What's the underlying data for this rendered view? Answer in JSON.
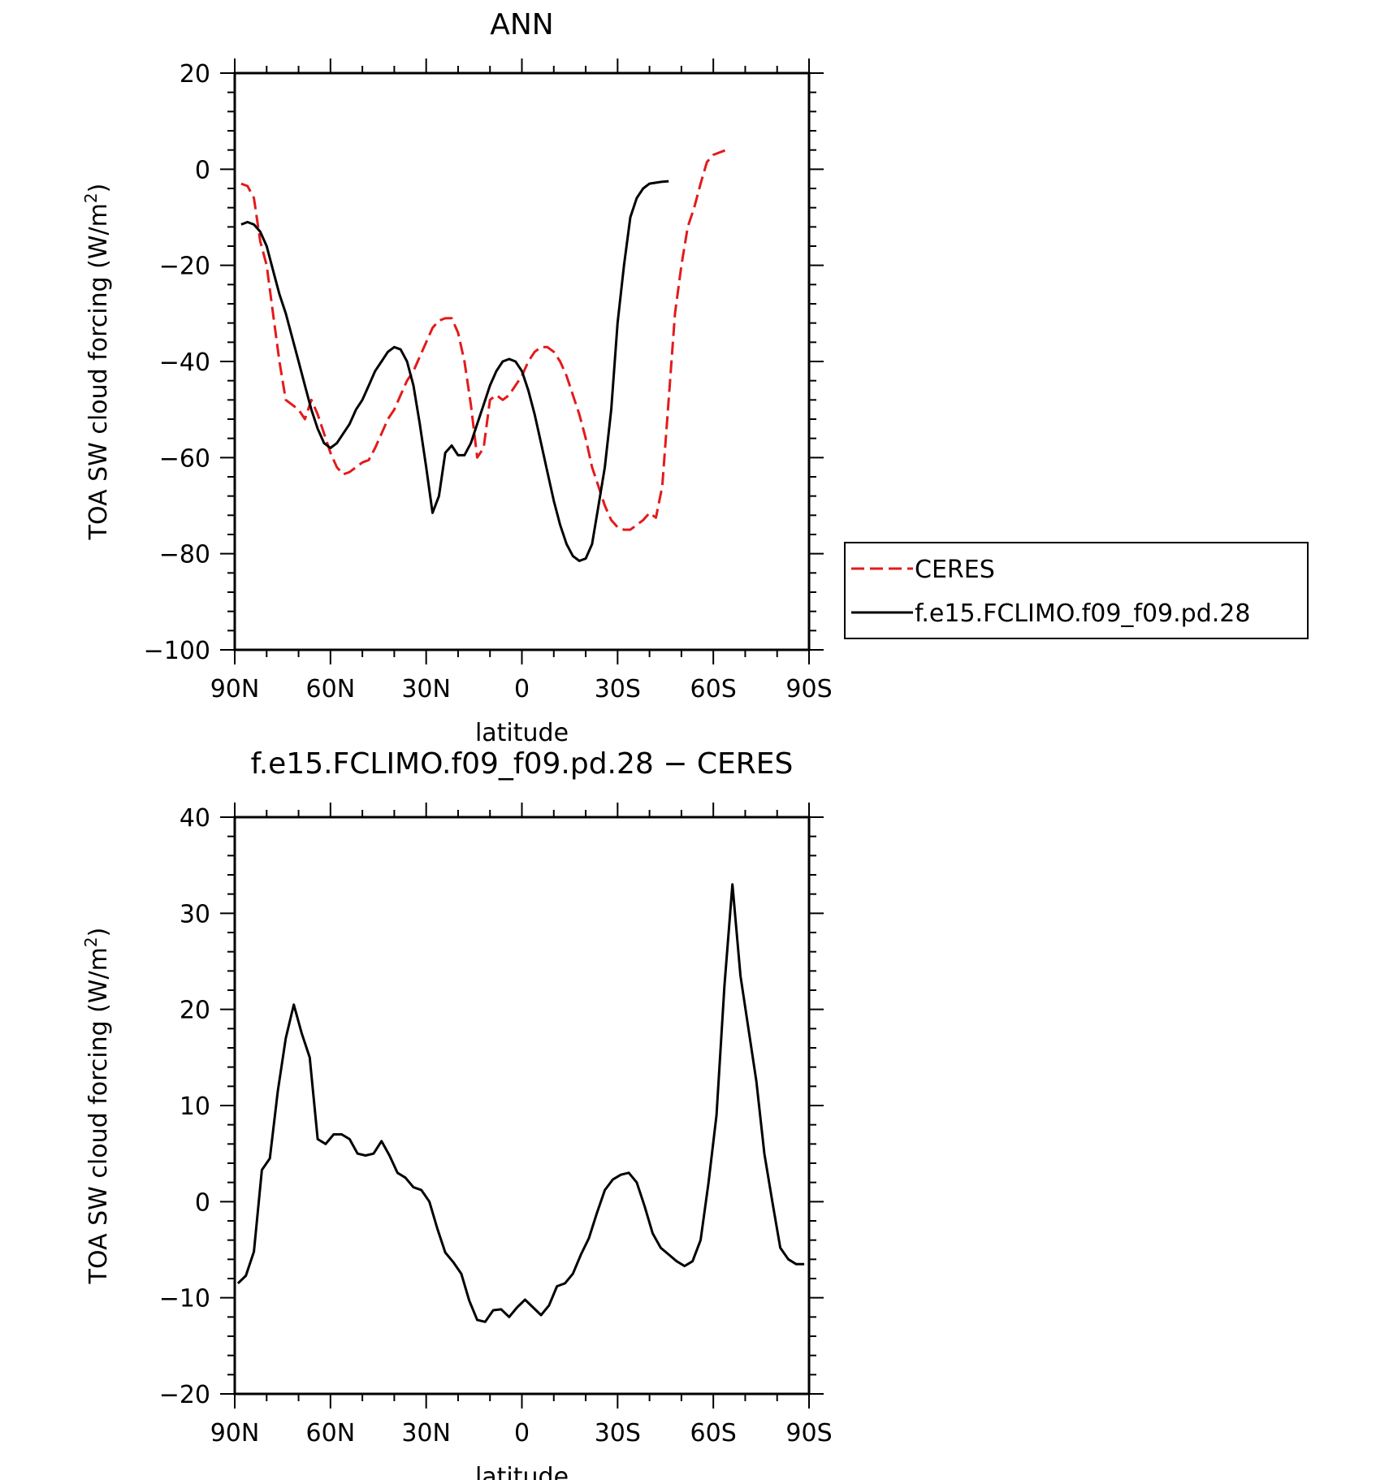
{
  "chart_data": [
    {
      "type": "line",
      "title": "ANN",
      "xlabel": "latitude",
      "ylabel": "TOA SW cloud forcing (W/m",
      "ylabel_sup": "2",
      "ylabel_close": ")",
      "xlim": [
        -90,
        90
      ],
      "ylim": [
        -100,
        20
      ],
      "xticks": [
        -90,
        -60,
        -30,
        0,
        30,
        60,
        90
      ],
      "xtick_labels": [
        "90N",
        "60N",
        "30N",
        "0",
        "30S",
        "60S",
        "90S"
      ],
      "yticks": [
        -100,
        -80,
        -60,
        -40,
        -20,
        0,
        20
      ],
      "ytick_labels": [
        "−100",
        "−80",
        "−60",
        "−40",
        "−20",
        "0",
        "20"
      ],
      "legend_position": "right",
      "series": [
        {
          "name": "CERES",
          "color": "#e31a1c",
          "dash": "dashed",
          "points": [
            [
              -88,
              -3
            ],
            [
              -86,
              -3.5
            ],
            [
              -84,
              -6
            ],
            [
              -82,
              -15
            ],
            [
              -80,
              -20
            ],
            [
              -78,
              -30
            ],
            [
              -76,
              -40
            ],
            [
              -74,
              -48
            ],
            [
              -72,
              -49
            ],
            [
              -70,
              -50
            ],
            [
              -68,
              -52
            ],
            [
              -66,
              -48
            ],
            [
              -64,
              -51
            ],
            [
              -62,
              -55
            ],
            [
              -60,
              -59
            ],
            [
              -58,
              -62
            ],
            [
              -56,
              -63.5
            ],
            [
              -54,
              -63
            ],
            [
              -52,
              -62
            ],
            [
              -50,
              -61
            ],
            [
              -48,
              -60.5
            ],
            [
              -46,
              -58
            ],
            [
              -44,
              -55
            ],
            [
              -42,
              -52
            ],
            [
              -40,
              -50
            ],
            [
              -38,
              -47
            ],
            [
              -36,
              -44
            ],
            [
              -34,
              -42
            ],
            [
              -32,
              -39
            ],
            [
              -30,
              -36
            ],
            [
              -28,
              -33
            ],
            [
              -26,
              -31.5
            ],
            [
              -24,
              -31
            ],
            [
              -22,
              -31
            ],
            [
              -20,
              -34
            ],
            [
              -18,
              -40
            ],
            [
              -16,
              -49
            ],
            [
              -14,
              -60
            ],
            [
              -12,
              -58
            ],
            [
              -10,
              -48
            ],
            [
              -8,
              -47
            ],
            [
              -6,
              -48
            ],
            [
              -4,
              -47
            ],
            [
              -2,
              -45
            ],
            [
              0,
              -43
            ],
            [
              2,
              -40
            ],
            [
              4,
              -38
            ],
            [
              6,
              -37
            ],
            [
              8,
              -37
            ],
            [
              10,
              -38
            ],
            [
              12,
              -40
            ],
            [
              14,
              -43
            ],
            [
              16,
              -47
            ],
            [
              18,
              -51
            ],
            [
              20,
              -56
            ],
            [
              22,
              -62
            ],
            [
              24,
              -66
            ],
            [
              26,
              -70
            ],
            [
              28,
              -73
            ],
            [
              30,
              -74.5
            ],
            [
              32,
              -75
            ],
            [
              34,
              -75
            ],
            [
              36,
              -74
            ],
            [
              38,
              -73
            ],
            [
              40,
              -71.5
            ],
            [
              42,
              -72.5
            ],
            [
              44,
              -66
            ],
            [
              46,
              -48
            ],
            [
              48,
              -30
            ],
            [
              50,
              -20
            ],
            [
              52,
              -12
            ],
            [
              54,
              -8
            ],
            [
              56,
              -3
            ],
            [
              58,
              1.5
            ],
            [
              60,
              3
            ],
            [
              62,
              3.5
            ],
            [
              64,
              4
            ]
          ]
        },
        {
          "name": "f.e15.FCLIMO.f09_f09.pd.28",
          "color": "#000000",
          "dash": "solid",
          "points": [
            [
              -88,
              -11.5
            ],
            [
              -86,
              -11
            ],
            [
              -84,
              -11.5
            ],
            [
              -82,
              -13
            ],
            [
              -80,
              -16
            ],
            [
              -78,
              -21
            ],
            [
              -76,
              -26
            ],
            [
              -74,
              -30
            ],
            [
              -72,
              -35
            ],
            [
              -70,
              -40
            ],
            [
              -68,
              -45
            ],
            [
              -66,
              -50
            ],
            [
              -64,
              -54
            ],
            [
              -62,
              -57
            ],
            [
              -60,
              -58
            ],
            [
              -58,
              -57
            ],
            [
              -56,
              -55
            ],
            [
              -54,
              -53
            ],
            [
              -52,
              -50
            ],
            [
              -50,
              -48
            ],
            [
              -48,
              -45
            ],
            [
              -46,
              -42
            ],
            [
              -44,
              -40
            ],
            [
              -42,
              -38
            ],
            [
              -40,
              -37
            ],
            [
              -38,
              -37.5
            ],
            [
              -36,
              -40
            ],
            [
              -34,
              -45
            ],
            [
              -32,
              -53
            ],
            [
              -30,
              -62
            ],
            [
              -28,
              -71.5
            ],
            [
              -26,
              -68
            ],
            [
              -24,
              -59
            ],
            [
              -22,
              -57.5
            ],
            [
              -20,
              -59.5
            ],
            [
              -18,
              -59.5
            ],
            [
              -16,
              -57
            ],
            [
              -14,
              -53
            ],
            [
              -12,
              -49
            ],
            [
              -10,
              -45
            ],
            [
              -8,
              -42
            ],
            [
              -6,
              -40
            ],
            [
              -4,
              -39.5
            ],
            [
              -2,
              -40
            ],
            [
              0,
              -42
            ],
            [
              2,
              -46
            ],
            [
              4,
              -51
            ],
            [
              6,
              -57
            ],
            [
              8,
              -63
            ],
            [
              10,
              -69
            ],
            [
              12,
              -74
            ],
            [
              14,
              -78
            ],
            [
              16,
              -80.5
            ],
            [
              18,
              -81.5
            ],
            [
              20,
              -81
            ],
            [
              22,
              -78
            ],
            [
              24,
              -70
            ],
            [
              26,
              -62
            ],
            [
              28,
              -50
            ],
            [
              30,
              -32
            ],
            [
              32,
              -20
            ],
            [
              34,
              -10
            ],
            [
              36,
              -6
            ],
            [
              38,
              -4
            ],
            [
              40,
              -3
            ],
            [
              42,
              -2.8
            ],
            [
              44,
              -2.6
            ],
            [
              46,
              -2.5
            ]
          ]
        }
      ],
      "legend": [
        {
          "label": "CERES"
        },
        {
          "label": "f.e15.FCLIMO.f09_f09.pd.28"
        }
      ]
    },
    {
      "type": "line",
      "title": "f.e15.FCLIMO.f09_f09.pd.28 − CERES",
      "xlabel": "latitude",
      "ylabel": "TOA SW cloud forcing (W/m",
      "ylabel_sup": "2",
      "ylabel_close": ")",
      "xlim": [
        -90,
        90
      ],
      "ylim": [
        -20,
        40
      ],
      "xticks": [
        -90,
        -60,
        -30,
        0,
        30,
        60,
        90
      ],
      "xtick_labels": [
        "90N",
        "60N",
        "30N",
        "0",
        "30S",
        "60S",
        "90S"
      ],
      "yticks": [
        -20,
        -10,
        0,
        10,
        20,
        30,
        40
      ],
      "ytick_labels": [
        "−20",
        "−10",
        "0",
        "10",
        "20",
        "30",
        "40"
      ],
      "series": [
        {
          "color": "#000000",
          "dash": "solid",
          "points": [
            [
              -89,
              -8.5
            ],
            [
              -86.5,
              -7.7
            ],
            [
              -84,
              -5.2
            ],
            [
              -81.5,
              3.3
            ],
            [
              -79,
              4.5
            ],
            [
              -76.5,
              11.5
            ],
            [
              -74,
              17
            ],
            [
              -71.5,
              20.5
            ],
            [
              -69,
              17.5
            ],
            [
              -66.5,
              15
            ],
            [
              -64,
              6.5
            ],
            [
              -61.5,
              6
            ],
            [
              -59,
              7
            ],
            [
              -56.5,
              7
            ],
            [
              -54,
              6.5
            ],
            [
              -51.5,
              5
            ],
            [
              -49,
              4.8
            ],
            [
              -46.5,
              5
            ],
            [
              -44,
              6.3
            ],
            [
              -41.5,
              4.8
            ],
            [
              -39,
              3
            ],
            [
              -36.5,
              2.5
            ],
            [
              -34,
              1.5
            ],
            [
              -31.5,
              1.2
            ],
            [
              -29,
              0
            ],
            [
              -26.5,
              -2.8
            ],
            [
              -24,
              -5.3
            ],
            [
              -21.5,
              -6.3
            ],
            [
              -19,
              -7.5
            ],
            [
              -16.5,
              -10.3
            ],
            [
              -14,
              -12.3
            ],
            [
              -11.5,
              -12.5
            ],
            [
              -9,
              -11.3
            ],
            [
              -6.5,
              -11.2
            ],
            [
              -4,
              -12
            ],
            [
              -1.5,
              -11
            ],
            [
              1,
              -10.2
            ],
            [
              3.5,
              -11
            ],
            [
              6,
              -11.8
            ],
            [
              8.5,
              -10.8
            ],
            [
              11,
              -8.8
            ],
            [
              13.5,
              -8.5
            ],
            [
              16,
              -7.5
            ],
            [
              18.5,
              -5.5
            ],
            [
              21,
              -3.8
            ],
            [
              23.5,
              -1.2
            ],
            [
              26,
              1.2
            ],
            [
              28.5,
              2.3
            ],
            [
              31,
              2.8
            ],
            [
              33.5,
              3
            ],
            [
              36,
              2
            ],
            [
              38.5,
              -0.5
            ],
            [
              41,
              -3.3
            ],
            [
              43.5,
              -4.8
            ],
            [
              46,
              -5.5
            ],
            [
              48.5,
              -6.2
            ],
            [
              51,
              -6.7
            ],
            [
              53.5,
              -6.2
            ],
            [
              56,
              -4
            ],
            [
              58.5,
              2
            ],
            [
              61,
              9
            ],
            [
              63.5,
              22.5
            ],
            [
              66,
              33
            ],
            [
              68.5,
              23.5
            ],
            [
              71,
              18
            ],
            [
              73.5,
              12.5
            ],
            [
              76,
              5
            ],
            [
              78.5,
              0
            ],
            [
              81,
              -4.8
            ],
            [
              83.5,
              -6
            ],
            [
              86,
              -6.5
            ],
            [
              88.5,
              -6.5
            ]
          ]
        }
      ]
    }
  ]
}
